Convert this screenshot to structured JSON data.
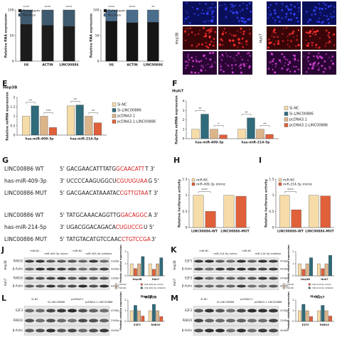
{
  "images": {
    "cells": [
      "Hep3B",
      "Huh7"
    ]
  },
  "chart_data": [
    {
      "type": "bar",
      "stacked": true,
      "ylabel": "Relative RNA expression",
      "categories": [
        "U6",
        "ACTIN",
        "LINC00886"
      ],
      "series": [
        {
          "name": "Cytoplasm",
          "color": "#1c1c1c",
          "values": [
            72,
            70,
            68
          ]
        },
        {
          "name": "Nucleus",
          "color": "#3f5a6e",
          "values": [
            28,
            30,
            32
          ]
        }
      ],
      "ylim": [
        0,
        100
      ],
      "yticks": [
        0,
        50,
        100
      ],
      "significance": [
        "****",
        "****",
        "****"
      ],
      "legend": "top-left"
    },
    {
      "type": "bar",
      "stacked": true,
      "ylabel": "Relative RNA expression",
      "categories": [
        "U6",
        "ACTIN",
        "LINC00886"
      ],
      "series": [
        {
          "name": "Cytoplasm",
          "color": "#151515",
          "values": [
            78,
            75,
            76
          ]
        },
        {
          "name": "Nucleus",
          "color": "#4b6d8c",
          "values": [
            22,
            25,
            24
          ]
        }
      ],
      "ylim": [
        0,
        100
      ],
      "yticks": [
        0,
        50,
        100
      ],
      "significance": [
        "****",
        "****",
        "**"
      ],
      "legend": "top-left"
    },
    {
      "type": "bar",
      "panel": "E",
      "title": "Hep3B",
      "ylabel": "Relative miRNA expression",
      "categories": [
        "has-miR-409-3p",
        "has-miR-214-5p"
      ],
      "series": [
        {
          "name": "Si-NC",
          "color": "#f6dca8",
          "values": [
            1.0,
            1.55
          ]
        },
        {
          "name": "Si-LINC00886",
          "color": "#2f6b7a",
          "values": [
            1.55,
            1.6
          ]
        },
        {
          "name": "pcDNA3.1",
          "color": "#dcb48a",
          "values": [
            1.0,
            1.0
          ]
        },
        {
          "name": "pcDNA3.1-LINC00886",
          "color": "#e0603a",
          "values": [
            0.4,
            0.65
          ]
        }
      ],
      "ylim": [
        0,
        2
      ],
      "yticks": [
        0,
        0.5,
        1,
        1.5,
        2
      ],
      "significance": [
        [
          "**",
          "***"
        ],
        [
          "**",
          "**"
        ]
      ],
      "legend": "right"
    },
    {
      "type": "bar",
      "panel": "F",
      "title": "Huh7",
      "ylabel": "Relative miRNA expression",
      "categories": [
        "has-miR-409-3p",
        "has-miR-214-5p"
      ],
      "series": [
        {
          "name": "Si-NC",
          "color": "#f6dca8",
          "values": [
            1.0,
            1.0
          ]
        },
        {
          "name": "Si-LINC00886",
          "color": "#2f6b7a",
          "values": [
            2.6,
            2.2
          ]
        },
        {
          "name": "pcDNA3.1",
          "color": "#dcb48a",
          "values": [
            1.0,
            1.0
          ]
        },
        {
          "name": "pcDNA3.1-LINC00886",
          "color": "#e0603a",
          "values": [
            0.4,
            0.45
          ]
        }
      ],
      "ylim": [
        0,
        4
      ],
      "yticks": [
        0,
        1,
        2,
        3,
        4
      ],
      "significance": [
        [
          "**",
          "*"
        ],
        [
          "**",
          "**"
        ]
      ],
      "legend": "right"
    },
    {
      "type": "bar",
      "panel": "H",
      "ylabel": "Relative luciferase activity",
      "categories": [
        "LINC00886-WT",
        "LINC00886-MUT"
      ],
      "series": [
        {
          "name": "miR-NC",
          "color": "#f6dca8",
          "values": [
            1.0,
            1.0
          ]
        },
        {
          "name": "miR-409-3p mimic",
          "color": "#e0603a",
          "values": [
            0.5,
            0.97
          ]
        }
      ],
      "ylim": [
        0,
        1.5
      ],
      "yticks": [
        0,
        0.5,
        1,
        1.5
      ],
      "significance": [
        [
          "****"
        ],
        []
      ],
      "legend": "top-left"
    },
    {
      "type": "bar",
      "panel": "I",
      "ylabel": "Relative luciferase activity",
      "categories": [
        "LINC00886-WT",
        "LINC00886-MUT"
      ],
      "series": [
        {
          "name": "miR-NC",
          "color": "#f6dca8",
          "values": [
            1.0,
            1.0
          ]
        },
        {
          "name": "miR-214-5p mimic",
          "color": "#e0603a",
          "values": [
            0.55,
            0.98
          ]
        }
      ],
      "ylim": [
        0,
        1.5
      ],
      "yticks": [
        0,
        0.5,
        1,
        1.5
      ],
      "significance": [
        [
          "****"
        ],
        []
      ],
      "legend": "top-left"
    },
    {
      "type": "bar",
      "ylabel": "Protein relative expression",
      "categories": [
        "Hep3B",
        "Huh7"
      ],
      "series": [
        {
          "name": "miR-NC",
          "color": "#f6dca8",
          "values": [
            1.0,
            1.0
          ]
        },
        {
          "name": "miR-409-3p mimic",
          "color": "#e0603a",
          "values": [
            0.6,
            0.55
          ]
        },
        {
          "name": "miR-NC",
          "color": "#dcb48a",
          "values": [
            1.0,
            1.0
          ]
        },
        {
          "name": "miR-409-3p inhibitor",
          "color": "#2f6b7a",
          "values": [
            1.6,
            1.5
          ]
        }
      ],
      "ylim": [
        0,
        2
      ],
      "yticks": [
        0,
        1,
        2
      ],
      "legend": "bottom"
    },
    {
      "type": "bar",
      "ylabel": "Protein relative expression",
      "categories": [
        "Hep3B",
        "Huh7"
      ],
      "series": [
        {
          "name": "miR-NC",
          "color": "#f6dca8",
          "values": [
            1.0,
            1.0
          ]
        },
        {
          "name": "miR-214-5p mimic",
          "color": "#e0603a",
          "values": [
            0.55,
            0.6
          ]
        },
        {
          "name": "miR-NC",
          "color": "#dcb48a",
          "values": [
            1.0,
            1.0
          ]
        },
        {
          "name": "miR-214-5p inhibitor",
          "color": "#2f6b7a",
          "values": [
            1.5,
            1.7
          ]
        }
      ],
      "ylim": [
        0,
        2
      ],
      "yticks": [
        0,
        1,
        2
      ],
      "legend": "bottom"
    },
    {
      "type": "bar",
      "title": "Hep3B",
      "ylabel": "Protein relative expression",
      "categories": [
        "E2F3",
        "RAB10"
      ],
      "series": [
        {
          "name": "Si-NC",
          "color": "#f6dca8",
          "values": [
            1.0,
            1.0
          ]
        },
        {
          "name": "Si-LINC00886",
          "color": "#2f6b7a",
          "values": [
            1.5,
            1.6
          ]
        },
        {
          "name": "pcDNA3.1",
          "color": "#dcb48a",
          "values": [
            1.0,
            1.0
          ]
        },
        {
          "name": "pcDNA3.1-LINC00886",
          "color": "#e0603a",
          "values": [
            0.5,
            0.45
          ]
        }
      ],
      "ylim": [
        0,
        2
      ],
      "yticks": [
        0,
        1,
        2
      ]
    },
    {
      "type": "bar",
      "title": "Huh7",
      "ylabel": "Protein relative expression",
      "categories": [
        "E2F3",
        "RAB10"
      ],
      "series": [
        {
          "name": "Si-NC",
          "color": "#f6dca8",
          "values": [
            1.0,
            1.0
          ]
        },
        {
          "name": "Si-LINC00886",
          "color": "#2f6b7a",
          "values": [
            1.6,
            1.5
          ]
        },
        {
          "name": "pcDNA3.1",
          "color": "#dcb48a",
          "values": [
            1.0,
            1.0
          ]
        },
        {
          "name": "pcDNA3.1-LINC00886",
          "color": "#e0603a",
          "values": [
            0.45,
            0.5
          ]
        }
      ],
      "ylim": [
        0,
        2
      ],
      "yticks": [
        0,
        1,
        2
      ]
    }
  ],
  "sequences": {
    "panel": "G",
    "rows": [
      {
        "name": "LINC00886 WT",
        "prefix": "5' GACGAACATTTATG",
        "site": "GCAACATT",
        "suffix": "T 3'"
      },
      {
        "name": "has-miR-409-3p",
        "prefix": "3' UCCCCAAGUGGCU",
        "site": "CGUUGUAA",
        "suffix": "G 5'"
      },
      {
        "name": "LINC00886 MUT",
        "prefix": "5' GACGAACATAAATAC",
        "site": "CGTTGTAA",
        "suffix": "T 3'"
      },
      {
        "name": "LINC00886 WT",
        "prefix": "5' TATGCAAACAGGTTG",
        "site": "GACAGGC",
        "suffix": "A 3'"
      },
      {
        "name": "has-miR-214-5p",
        "prefix": "3' UGACGGACAGACA",
        "site": "CUGUCCG",
        "suffix": "U 5'"
      },
      {
        "name": "LINC00886 MUT",
        "prefix": "5' TATGTACATGTCCAAC",
        "site": "CTGTCCGA",
        "suffix": "3'"
      }
    ]
  },
  "blots": [
    {
      "panel": "J",
      "lanes": [
        "miR-NC",
        "miR-409-3p mimic",
        "miR-NC",
        "miR-409-3p inhibitor"
      ],
      "groups": [
        {
          "cell": "Hep3B",
          "proteins": [
            "RAB10",
            "β-Actin"
          ]
        },
        {
          "cell": "Huh7",
          "proteins": [
            "RAB10",
            "β-Actin"
          ]
        }
      ],
      "sizes": [
        "23kDa",
        "42kDa"
      ]
    },
    {
      "panel": "K",
      "lanes": [
        "miR-NC",
        "miR-214-5p mimic",
        "miR-NC",
        "miR-214-5p inhibitor"
      ],
      "groups": [
        {
          "cell": "Hep3B",
          "proteins": [
            "E2F3",
            "β-Actin"
          ]
        },
        {
          "cell": "Huh7",
          "proteins": [
            "E2F3",
            "β-Actin"
          ]
        }
      ],
      "sizes": [
        "47kDa",
        "42kDa"
      ]
    },
    {
      "panel": "L",
      "lanes": [
        "Si-NC",
        "Si-LINC00886",
        "pcDNA3.1",
        "pcDNA3.1-LINC00886"
      ],
      "groups": [
        {
          "cell": "Hep3B",
          "proteins": [
            "E2F3",
            "RAB10",
            "β-Actin"
          ]
        }
      ],
      "sizes": [
        "47kDa",
        "23kDa",
        "42kDa"
      ]
    },
    {
      "panel": "M",
      "lanes": [
        "Si-NC",
        "Si-LINC00886",
        "pcDNA3.1",
        "pcDNA3.1-LINC00886"
      ],
      "groups": [
        {
          "cell": "Huh7",
          "proteins": [
            "E2F3",
            "RAB10",
            "β-Actin"
          ]
        }
      ],
      "sizes": [
        "47kDa",
        "23kDa",
        "42kDa"
      ]
    }
  ]
}
